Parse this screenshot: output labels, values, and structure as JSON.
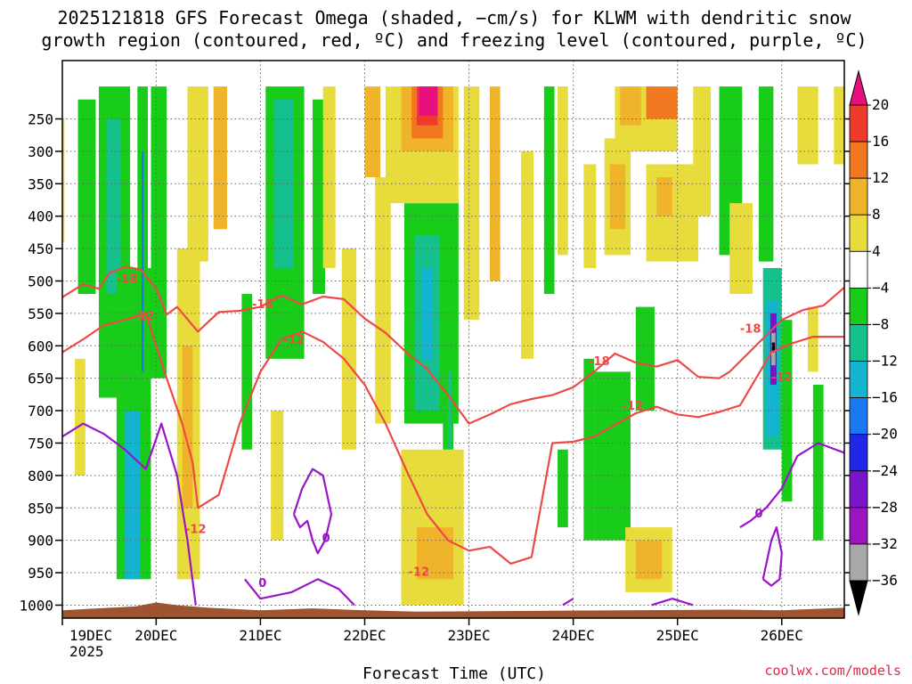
{
  "chart_data": {
    "type": "heatmap",
    "title_line1": "2025121818 GFS Forecast Omega (shaded, −cm/s) for KLWM with dendritic snow",
    "title_line2": "growth region (contoured, red, ºC) and freezing level (contoured, purple, ºC)",
    "xlabel": "Forecast Time (UTC)",
    "year_label": "2025",
    "credit": "coolwx.com/models",
    "x_ticks": [
      {
        "t": 0.1,
        "label": "19DEC"
      },
      {
        "t": 1.0,
        "label": "20DEC"
      },
      {
        "t": 2.0,
        "label": "21DEC"
      },
      {
        "t": 3.0,
        "label": "22DEC"
      },
      {
        "t": 4.0,
        "label": "23DEC"
      },
      {
        "t": 5.0,
        "label": "24DEC"
      },
      {
        "t": 6.0,
        "label": "25DEC"
      },
      {
        "t": 7.0,
        "label": "26DEC"
      }
    ],
    "x_range": [
      0.1,
      7.6
    ],
    "y_ticks": [
      250,
      300,
      350,
      400,
      450,
      500,
      550,
      600,
      650,
      700,
      750,
      800,
      850,
      900,
      950,
      1000
    ],
    "y_range": [
      1020,
      160
    ],
    "colorbar": {
      "levels": [
        "20",
        "16",
        "12",
        "8",
        "4",
        "−4",
        "−8",
        "−12",
        "−16",
        "−20",
        "−24",
        "−28",
        "−32",
        "−36"
      ],
      "colors": [
        "#e8107e",
        "#ef3b2c",
        "#f07820",
        "#f0b42a",
        "#e8dc3c",
        "#ffffff",
        "#19cc19",
        "#16c08e",
        "#14b4d0",
        "#1a78f0",
        "#1e28e6",
        "#7a14c8",
        "#9a14c0",
        "#a8a8a8",
        "#000000"
      ]
    },
    "omega_cells": [
      {
        "t0": 0.45,
        "t1": 0.75,
        "p0": 200,
        "p1": 680,
        "c": "#19cc19"
      },
      {
        "t0": 0.52,
        "t1": 0.66,
        "p0": 250,
        "p1": 520,
        "c": "#16c08e"
      },
      {
        "t0": 0.62,
        "t1": 0.95,
        "p0": 480,
        "p1": 960,
        "c": "#19cc19"
      },
      {
        "t0": 0.7,
        "t1": 0.85,
        "p0": 700,
        "p1": 960,
        "c": "#14b4d0"
      },
      {
        "t0": 0.82,
        "t1": 0.92,
        "p0": 200,
        "p1": 640,
        "c": "#19cc19"
      },
      {
        "t0": 0.86,
        "t1": 0.88,
        "p0": 300,
        "p1": 640,
        "c": "#1a78f0"
      },
      {
        "t0": 0.0,
        "t1": 0.12,
        "p0": 250,
        "p1": 440,
        "c": "#e8dc3c"
      },
      {
        "t0": 0.25,
        "t1": 0.42,
        "p0": 220,
        "p1": 520,
        "c": "#19cc19"
      },
      {
        "t0": 0.22,
        "t1": 0.32,
        "p0": 620,
        "p1": 800,
        "c": "#e8dc3c"
      },
      {
        "t0": 0.95,
        "t1": 1.1,
        "p0": 200,
        "p1": 650,
        "c": "#19cc19"
      },
      {
        "t0": 1.2,
        "t1": 1.42,
        "p0": 450,
        "p1": 960,
        "c": "#e8dc3c"
      },
      {
        "t0": 1.25,
        "t1": 1.35,
        "p0": 600,
        "p1": 850,
        "c": "#f0b42a"
      },
      {
        "t0": 1.3,
        "t1": 1.5,
        "p0": 200,
        "p1": 470,
        "c": "#e8dc3c"
      },
      {
        "t0": 1.55,
        "t1": 1.68,
        "p0": 200,
        "p1": 420,
        "c": "#f0b42a"
      },
      {
        "t0": 1.82,
        "t1": 1.92,
        "p0": 520,
        "p1": 760,
        "c": "#19cc19"
      },
      {
        "t0": 2.05,
        "t1": 2.42,
        "p0": 200,
        "p1": 620,
        "c": "#19cc19"
      },
      {
        "t0": 2.13,
        "t1": 2.32,
        "p0": 220,
        "p1": 480,
        "c": "#16c08e"
      },
      {
        "t0": 2.1,
        "t1": 2.22,
        "p0": 700,
        "p1": 900,
        "c": "#e8dc3c"
      },
      {
        "t0": 2.5,
        "t1": 2.62,
        "p0": 220,
        "p1": 520,
        "c": "#19cc19"
      },
      {
        "t0": 2.6,
        "t1": 2.72,
        "p0": 200,
        "p1": 480,
        "c": "#e8dc3c"
      },
      {
        "t0": 2.78,
        "t1": 2.92,
        "p0": 450,
        "p1": 760,
        "c": "#e8dc3c"
      },
      {
        "t0": 3.0,
        "t1": 3.15,
        "p0": 200,
        "p1": 340,
        "c": "#f0b42a"
      },
      {
        "t0": 3.1,
        "t1": 3.25,
        "p0": 340,
        "p1": 720,
        "c": "#e8dc3c"
      },
      {
        "t0": 3.38,
        "t1": 3.9,
        "p0": 380,
        "p1": 720,
        "c": "#19cc19"
      },
      {
        "t0": 3.48,
        "t1": 3.72,
        "p0": 430,
        "p1": 700,
        "c": "#16c08e"
      },
      {
        "t0": 3.55,
        "t1": 3.65,
        "p0": 480,
        "p1": 620,
        "c": "#14b4d0"
      },
      {
        "t0": 3.75,
        "t1": 3.85,
        "p0": 600,
        "p1": 840,
        "c": "#19cc19"
      },
      {
        "t0": 3.8,
        "t1": 3.83,
        "p0": 640,
        "p1": 820,
        "c": "#16c08e"
      },
      {
        "t0": 3.2,
        "t1": 3.9,
        "p0": 200,
        "p1": 380,
        "c": "#e8dc3c"
      },
      {
        "t0": 3.35,
        "t1": 3.85,
        "p0": 200,
        "p1": 300,
        "c": "#f0b42a"
      },
      {
        "t0": 3.45,
        "t1": 3.75,
        "p0": 200,
        "p1": 280,
        "c": "#f07820"
      },
      {
        "t0": 3.5,
        "t1": 3.7,
        "p0": 200,
        "p1": 260,
        "c": "#ef3b2c"
      },
      {
        "t0": 3.52,
        "t1": 3.7,
        "p0": 200,
        "p1": 245,
        "c": "#e8107e"
      },
      {
        "t0": 3.35,
        "t1": 3.95,
        "p0": 760,
        "p1": 1000,
        "c": "#e8dc3c"
      },
      {
        "t0": 3.5,
        "t1": 3.85,
        "p0": 880,
        "p1": 960,
        "c": "#f0b42a"
      },
      {
        "t0": 3.95,
        "t1": 4.1,
        "p0": 200,
        "p1": 560,
        "c": "#e8dc3c"
      },
      {
        "t0": 4.2,
        "t1": 4.3,
        "p0": 200,
        "p1": 500,
        "c": "#f0b42a"
      },
      {
        "t0": 4.5,
        "t1": 4.62,
        "p0": 300,
        "p1": 620,
        "c": "#e8dc3c"
      },
      {
        "t0": 4.72,
        "t1": 4.82,
        "p0": 200,
        "p1": 520,
        "c": "#19cc19"
      },
      {
        "t0": 4.85,
        "t1": 4.95,
        "p0": 200,
        "p1": 460,
        "c": "#e8dc3c"
      },
      {
        "t0": 4.85,
        "t1": 4.95,
        "p0": 760,
        "p1": 880,
        "c": "#19cc19"
      },
      {
        "t0": 5.1,
        "t1": 5.22,
        "p0": 320,
        "p1": 480,
        "c": "#e8dc3c"
      },
      {
        "t0": 5.1,
        "t1": 5.2,
        "p0": 620,
        "p1": 900,
        "c": "#19cc19"
      },
      {
        "t0": 5.2,
        "t1": 5.55,
        "p0": 640,
        "p1": 900,
        "c": "#19cc19"
      },
      {
        "t0": 5.3,
        "t1": 5.55,
        "p0": 280,
        "p1": 460,
        "c": "#e8dc3c"
      },
      {
        "t0": 5.35,
        "t1": 5.5,
        "p0": 320,
        "p1": 420,
        "c": "#f0b42a"
      },
      {
        "t0": 5.4,
        "t1": 6.0,
        "p0": 200,
        "p1": 300,
        "c": "#e8dc3c"
      },
      {
        "t0": 5.45,
        "t1": 5.65,
        "p0": 200,
        "p1": 260,
        "c": "#f0b42a"
      },
      {
        "t0": 5.6,
        "t1": 5.78,
        "p0": 540,
        "p1": 700,
        "c": "#19cc19"
      },
      {
        "t0": 5.7,
        "t1": 6.0,
        "p0": 200,
        "p1": 250,
        "c": "#f07820"
      },
      {
        "t0": 5.7,
        "t1": 6.2,
        "p0": 320,
        "p1": 470,
        "c": "#e8dc3c"
      },
      {
        "t0": 5.8,
        "t1": 5.95,
        "p0": 340,
        "p1": 400,
        "c": "#f0b42a"
      },
      {
        "t0": 5.5,
        "t1": 5.95,
        "p0": 880,
        "p1": 980,
        "c": "#e8dc3c"
      },
      {
        "t0": 5.6,
        "t1": 5.85,
        "p0": 900,
        "p1": 960,
        "c": "#f0b42a"
      },
      {
        "t0": 6.15,
        "t1": 6.32,
        "p0": 200,
        "p1": 400,
        "c": "#e8dc3c"
      },
      {
        "t0": 6.4,
        "t1": 6.62,
        "p0": 200,
        "p1": 460,
        "c": "#19cc19"
      },
      {
        "t0": 6.5,
        "t1": 6.72,
        "p0": 380,
        "p1": 520,
        "c": "#e8dc3c"
      },
      {
        "t0": 6.78,
        "t1": 6.92,
        "p0": 200,
        "p1": 470,
        "c": "#19cc19"
      },
      {
        "t0": 6.82,
        "t1": 7.0,
        "p0": 480,
        "p1": 760,
        "c": "#16c08e"
      },
      {
        "t0": 6.85,
        "t1": 6.97,
        "p0": 530,
        "p1": 740,
        "c": "#14b4d0"
      },
      {
        "t0": 6.89,
        "t1": 6.95,
        "p0": 550,
        "p1": 660,
        "c": "#7a14c8"
      },
      {
        "t0": 6.9,
        "t1": 6.94,
        "p0": 580,
        "p1": 630,
        "c": "#a8a8a8"
      },
      {
        "t0": 6.905,
        "t1": 6.935,
        "p0": 595,
        "p1": 610,
        "c": "#000000"
      },
      {
        "t0": 7.0,
        "t1": 7.1,
        "p0": 560,
        "p1": 840,
        "c": "#19cc19"
      },
      {
        "t0": 7.15,
        "t1": 7.35,
        "p0": 200,
        "p1": 320,
        "c": "#e8dc3c"
      },
      {
        "t0": 7.25,
        "t1": 7.35,
        "p0": 540,
        "p1": 640,
        "c": "#e8dc3c"
      },
      {
        "t0": 7.3,
        "t1": 7.4,
        "p0": 660,
        "p1": 900,
        "c": "#19cc19"
      },
      {
        "t0": 7.5,
        "t1": 7.6,
        "p0": 200,
        "p1": 320,
        "c": "#e8dc3c"
      }
    ],
    "contours_red": [
      {
        "label": "-18",
        "label_at": [
          0.72,
          496
        ],
        "points": [
          [
            0.1,
            525
          ],
          [
            0.3,
            505
          ],
          [
            0.45,
            512
          ],
          [
            0.55,
            488
          ],
          [
            0.7,
            478
          ],
          [
            0.85,
            482
          ],
          [
            1.0,
            512
          ],
          [
            1.1,
            552
          ],
          [
            1.2,
            540
          ],
          [
            1.4,
            578
          ],
          [
            1.6,
            548
          ],
          [
            1.8,
            546
          ],
          [
            2.0,
            540
          ],
          [
            2.2,
            522
          ],
          [
            2.4,
            536
          ],
          [
            2.6,
            524
          ],
          [
            2.8,
            528
          ],
          [
            3.0,
            558
          ],
          [
            3.2,
            580
          ],
          [
            3.4,
            610
          ],
          [
            3.6,
            636
          ],
          [
            3.8,
            676
          ],
          [
            4.0,
            720
          ],
          [
            4.2,
            706
          ],
          [
            4.4,
            690
          ],
          [
            4.6,
            682
          ],
          [
            4.8,
            676
          ],
          [
            5.0,
            664
          ],
          [
            5.2,
            640
          ],
          [
            5.4,
            612
          ],
          [
            5.6,
            626
          ],
          [
            5.8,
            632
          ],
          [
            6.0,
            622
          ],
          [
            6.2,
            648
          ],
          [
            6.4,
            650
          ],
          [
            6.5,
            640
          ],
          [
            6.7,
            608
          ],
          [
            7.0,
            560
          ],
          [
            7.2,
            545
          ],
          [
            7.4,
            538
          ],
          [
            7.6,
            510
          ]
        ]
      },
      {
        "label": "-12",
        "label_at": [
          0.88,
          553
        ],
        "points": [
          [
            0.1,
            610
          ],
          [
            0.3,
            590
          ],
          [
            0.5,
            568
          ],
          [
            0.7,
            560
          ],
          [
            0.9,
            550
          ],
          [
            1.0,
            600
          ],
          [
            1.1,
            650
          ],
          [
            1.25,
            720
          ],
          [
            1.35,
            780
          ],
          [
            1.4,
            850
          ],
          [
            1.6,
            830
          ],
          [
            1.8,
            720
          ],
          [
            2.0,
            640
          ],
          [
            2.2,
            590
          ],
          [
            2.4,
            578
          ],
          [
            2.6,
            594
          ],
          [
            2.8,
            620
          ],
          [
            3.0,
            660
          ],
          [
            3.2,
            720
          ],
          [
            3.4,
            792
          ],
          [
            3.6,
            860
          ],
          [
            3.8,
            900
          ],
          [
            4.0,
            916
          ],
          [
            4.2,
            910
          ],
          [
            4.4,
            936
          ],
          [
            4.6,
            926
          ],
          [
            4.8,
            750
          ],
          [
            5.0,
            748
          ],
          [
            5.2,
            740
          ],
          [
            5.4,
            722
          ],
          [
            5.6,
            704
          ],
          [
            5.8,
            694
          ],
          [
            6.0,
            706
          ],
          [
            6.2,
            710
          ],
          [
            6.4,
            702
          ],
          [
            6.6,
            692
          ],
          [
            6.9,
            610
          ],
          [
            7.1,
            596
          ],
          [
            7.3,
            586
          ],
          [
            7.6,
            586
          ]
        ]
      }
    ],
    "red_labels": [
      {
        "text": "-18",
        "t": 2.02,
        "p": 535
      },
      {
        "text": "-12",
        "t": 2.32,
        "p": 590
      },
      {
        "text": "-12",
        "t": 1.38,
        "p": 882
      },
      {
        "text": "-12",
        "t": 3.52,
        "p": 948
      },
      {
        "text": "-18",
        "t": 5.25,
        "p": 623
      },
      {
        "text": "-12",
        "t": 5.57,
        "p": 692
      },
      {
        "text": "-18",
        "t": 6.7,
        "p": 573
      },
      {
        "text": "-12",
        "t": 7.0,
        "p": 648
      }
    ],
    "contours_purple": [
      {
        "points": [
          [
            0.1,
            740
          ],
          [
            0.3,
            720
          ],
          [
            0.5,
            736
          ],
          [
            0.7,
            760
          ],
          [
            0.9,
            790
          ],
          [
            1.05,
            720
          ],
          [
            1.2,
            800
          ],
          [
            1.3,
            900
          ],
          [
            1.38,
            1000
          ]
        ]
      },
      {
        "points": [
          [
            1.85,
            960
          ],
          [
            2.0,
            990
          ],
          [
            2.3,
            980
          ],
          [
            2.55,
            960
          ],
          [
            2.75,
            975
          ],
          [
            2.9,
            1000
          ]
        ]
      },
      {
        "points": [
          [
            2.32,
            860
          ],
          [
            2.4,
            820
          ],
          [
            2.5,
            790
          ],
          [
            2.6,
            800
          ],
          [
            2.68,
            860
          ],
          [
            2.62,
            900
          ],
          [
            2.55,
            920
          ],
          [
            2.5,
            900
          ],
          [
            2.45,
            870
          ],
          [
            2.38,
            880
          ],
          [
            2.32,
            860
          ]
        ]
      },
      {
        "points": [
          [
            4.9,
            1000
          ],
          [
            5.0,
            990
          ]
        ]
      },
      {
        "points": [
          [
            5.75,
            1000
          ],
          [
            5.95,
            990
          ],
          [
            6.15,
            1000
          ]
        ]
      },
      {
        "points": [
          [
            6.6,
            880
          ],
          [
            6.7,
            870
          ],
          [
            6.85,
            850
          ],
          [
            7.0,
            820
          ],
          [
            7.15,
            770
          ],
          [
            7.35,
            750
          ],
          [
            7.6,
            765
          ]
        ]
      },
      {
        "points": [
          [
            6.82,
            960
          ],
          [
            6.9,
            900
          ],
          [
            6.95,
            880
          ],
          [
            7.0,
            920
          ],
          [
            6.98,
            960
          ],
          [
            6.9,
            970
          ],
          [
            6.82,
            960
          ]
        ]
      }
    ],
    "purple_labels": [
      {
        "text": "0",
        "t": 2.02,
        "p": 965
      },
      {
        "text": "0",
        "t": 2.63,
        "p": 896
      },
      {
        "text": "0",
        "t": 6.78,
        "p": 858
      }
    ],
    "terrain_top": [
      {
        "t": 0.1,
        "p": 1008
      },
      {
        "t": 0.8,
        "p": 1002
      },
      {
        "t": 1.0,
        "p": 996
      },
      {
        "t": 1.2,
        "p": 1000
      },
      {
        "t": 1.5,
        "p": 1004
      },
      {
        "t": 2.0,
        "p": 1008
      },
      {
        "t": 2.5,
        "p": 1005
      },
      {
        "t": 3.0,
        "p": 1008
      },
      {
        "t": 3.5,
        "p": 1010
      },
      {
        "t": 4.5,
        "p": 1009
      },
      {
        "t": 5.5,
        "p": 1008
      },
      {
        "t": 6.5,
        "p": 1007
      },
      {
        "t": 7.0,
        "p": 1008
      },
      {
        "t": 7.6,
        "p": 1004
      }
    ],
    "colors": {
      "red_contour": "#ef4848",
      "purple_contour": "#9a14c8",
      "terrain": "#9c5530",
      "grid": "#666666"
    }
  }
}
